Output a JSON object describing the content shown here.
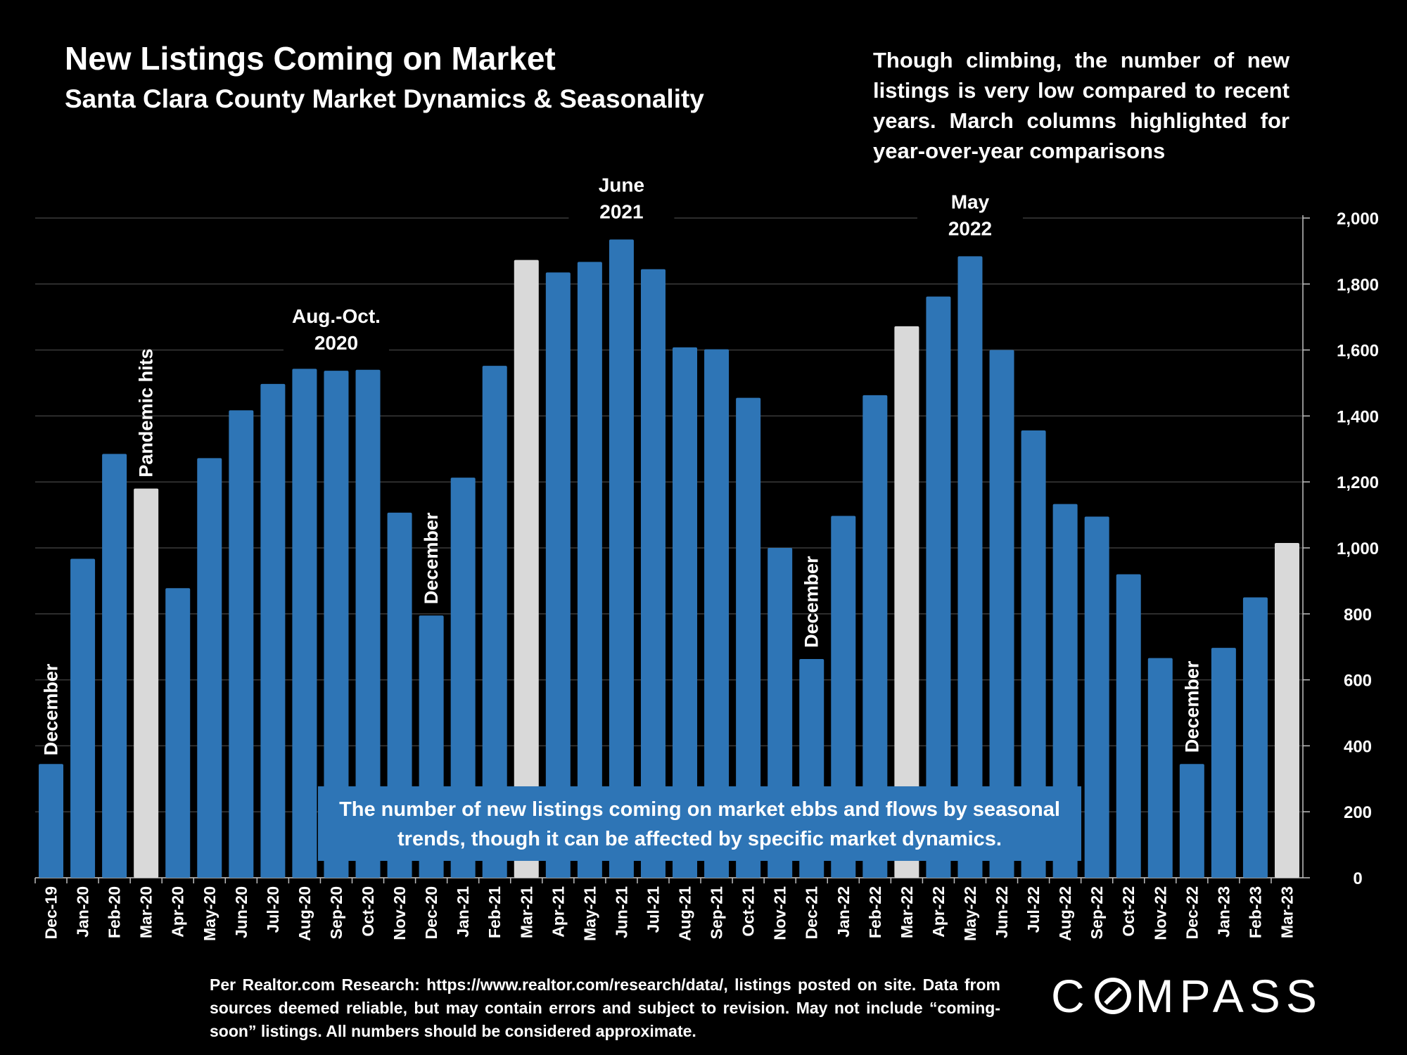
{
  "header": {
    "title": "New Listings Coming on Market",
    "subtitle": "Santa Clara County Market Dynamics & Seasonality",
    "note": "Though climbing, the number of new listings is very low compared to recent years. March columns highlighted for year-over-year comparisons"
  },
  "footer": {
    "source": "Per Realtor.com Research: https://www.realtor.com/research/data/, listings posted on site. Data from sources deemed reliable, but may contain errors and subject to revision. May not include “coming-soon” listings. All numbers should be considered approximate.",
    "logo": "COMPASS"
  },
  "colors": {
    "bar": "#2E75B6",
    "highlight": "#D9D9D9",
    "background": "#000000",
    "text": "#FFFFFF"
  },
  "chart_data": {
    "type": "bar",
    "title": "New Listings Coming on Market",
    "ylim": [
      0,
      2000
    ],
    "yticks": [
      "0",
      "200",
      "400",
      "600",
      "800",
      "1,000",
      "1,200",
      "1,400",
      "1,600",
      "1,800",
      "2,000"
    ],
    "y_axis_position": "right",
    "grid": true,
    "categories": [
      "Dec-19",
      "Jan-20",
      "Feb-20",
      "Mar-20",
      "Apr-20",
      "May-20",
      "Jun-20",
      "Jul-20",
      "Aug-20",
      "Sep-20",
      "Oct-20",
      "Nov-20",
      "Dec-20",
      "Jan-21",
      "Feb-21",
      "Mar-21",
      "Apr-21",
      "May-21",
      "Jun-21",
      "Jul-21",
      "Aug-21",
      "Sep-21",
      "Oct-21",
      "Nov-21",
      "Dec-21",
      "Jan-22",
      "Feb-22",
      "Mar-22",
      "Apr-22",
      "May-22",
      "Jun-22",
      "Jul-22",
      "Aug-22",
      "Sep-22",
      "Oct-22",
      "Nov-22",
      "Dec-22",
      "Jan-23",
      "Feb-23",
      "Mar-23"
    ],
    "values": [
      345,
      967,
      1285,
      1180,
      878,
      1272,
      1417,
      1497,
      1543,
      1537,
      1540,
      1107,
      795,
      1213,
      1552,
      1873,
      1835,
      1867,
      1935,
      1845,
      1608,
      1602,
      1455,
      1000,
      663,
      1097,
      1463,
      1672,
      1762,
      1884,
      1600,
      1356,
      1133,
      1095,
      920,
      666,
      345,
      697,
      850,
      1015
    ],
    "highlighted": [
      "Mar-20",
      "Mar-21",
      "Mar-22",
      "Mar-23"
    ],
    "annotations": [
      {
        "text": "December",
        "category": "Dec-19",
        "rotated": true
      },
      {
        "text": "Pandemic hits",
        "category": "Mar-20",
        "rotated": true
      },
      {
        "text": "Aug.-Oct. 2020",
        "lines": [
          "Aug.-Oct.",
          "2020"
        ],
        "category": "Sep-20",
        "rotated": false
      },
      {
        "text": "December",
        "category": "Dec-20",
        "rotated": true
      },
      {
        "text": "June 2021",
        "lines": [
          "June",
          "2021"
        ],
        "category": "Jun-21",
        "rotated": false
      },
      {
        "text": "December",
        "category": "Dec-21",
        "rotated": true
      },
      {
        "text": "May 2022",
        "lines": [
          "May",
          "2022"
        ],
        "category": "May-22",
        "rotated": false
      },
      {
        "text": "December",
        "category": "Dec-22",
        "rotated": true
      }
    ],
    "callout": "The number of new listings coming on market ebbs and flows by seasonal trends, though it can be affected by specific market dynamics."
  }
}
